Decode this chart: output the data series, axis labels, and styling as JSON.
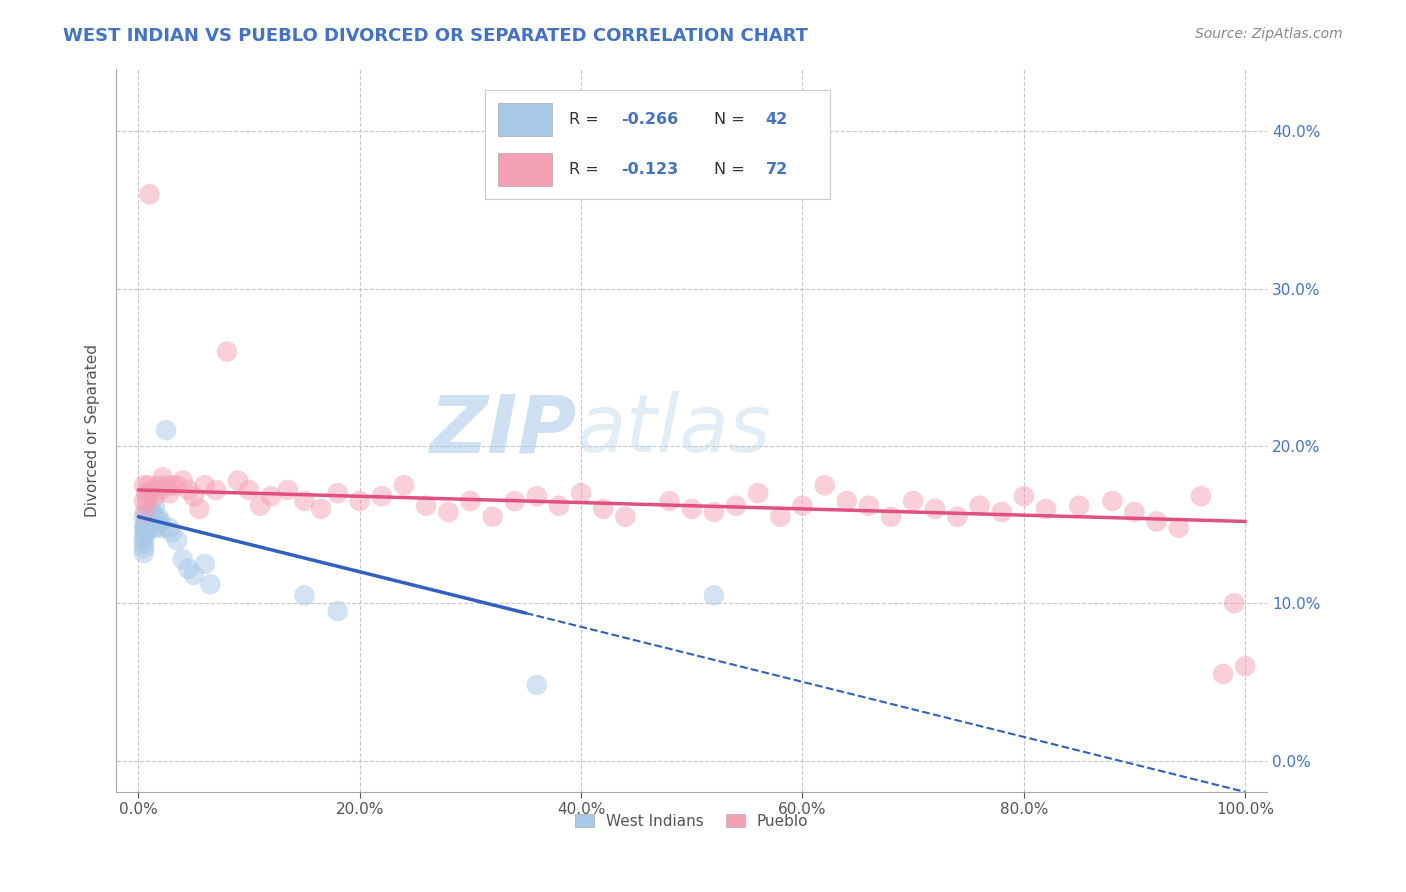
{
  "title": "WEST INDIAN VS PUEBLO DIVORCED OR SEPARATED CORRELATION CHART",
  "source_text": "Source: ZipAtlas.com",
  "ylabel": "Divorced or Separated",
  "xlim": [
    -0.02,
    1.02
  ],
  "ylim": [
    -0.02,
    0.44
  ],
  "xticks": [
    0.0,
    0.2,
    0.4,
    0.6,
    0.8,
    1.0
  ],
  "yticks": [
    0.0,
    0.1,
    0.2,
    0.3,
    0.4
  ],
  "color_blue": "#a8c8e8",
  "color_pink": "#f4a0b5",
  "color_blue_line": "#3060c0",
  "color_pink_line": "#e05080",
  "background_color": "#ffffff",
  "grid_color": "#c8c8c8",
  "title_color": "#4472c4",
  "axis_label_color": "#4472c4",
  "watermark_zip_color": "#b8d4f0",
  "watermark_atlas_color": "#c8dce8",
  "west_indians_x": [
    0.005,
    0.005,
    0.005,
    0.005,
    0.005,
    0.005,
    0.005,
    0.006,
    0.006,
    0.006,
    0.007,
    0.007,
    0.007,
    0.008,
    0.008,
    0.009,
    0.009,
    0.01,
    0.01,
    0.01,
    0.012,
    0.012,
    0.013,
    0.015,
    0.015,
    0.016,
    0.018,
    0.02,
    0.022,
    0.025,
    0.028,
    0.03,
    0.035,
    0.04,
    0.045,
    0.05,
    0.06,
    0.065,
    0.15,
    0.18,
    0.36,
    0.52
  ],
  "west_indians_y": [
    0.155,
    0.148,
    0.143,
    0.14,
    0.138,
    0.135,
    0.132,
    0.15,
    0.148,
    0.145,
    0.152,
    0.148,
    0.145,
    0.155,
    0.15,
    0.152,
    0.148,
    0.16,
    0.155,
    0.15,
    0.158,
    0.152,
    0.148,
    0.162,
    0.155,
    0.148,
    0.155,
    0.152,
    0.148,
    0.21,
    0.148,
    0.145,
    0.14,
    0.128,
    0.122,
    0.118,
    0.125,
    0.112,
    0.105,
    0.095,
    0.048,
    0.105
  ],
  "pueblo_x": [
    0.005,
    0.005,
    0.006,
    0.007,
    0.008,
    0.009,
    0.01,
    0.01,
    0.012,
    0.015,
    0.018,
    0.02,
    0.022,
    0.025,
    0.028,
    0.03,
    0.035,
    0.04,
    0.045,
    0.05,
    0.055,
    0.06,
    0.07,
    0.08,
    0.09,
    0.1,
    0.11,
    0.12,
    0.135,
    0.15,
    0.165,
    0.18,
    0.2,
    0.22,
    0.24,
    0.26,
    0.28,
    0.3,
    0.32,
    0.34,
    0.36,
    0.38,
    0.4,
    0.42,
    0.44,
    0.48,
    0.5,
    0.52,
    0.54,
    0.56,
    0.58,
    0.6,
    0.62,
    0.64,
    0.66,
    0.68,
    0.7,
    0.72,
    0.74,
    0.76,
    0.78,
    0.8,
    0.82,
    0.85,
    0.88,
    0.9,
    0.92,
    0.94,
    0.96,
    0.98,
    0.99,
    1.0
  ],
  "pueblo_y": [
    0.175,
    0.165,
    0.158,
    0.17,
    0.165,
    0.175,
    0.17,
    0.36,
    0.172,
    0.168,
    0.175,
    0.172,
    0.18,
    0.175,
    0.17,
    0.175,
    0.175,
    0.178,
    0.172,
    0.168,
    0.16,
    0.175,
    0.172,
    0.26,
    0.178,
    0.172,
    0.162,
    0.168,
    0.172,
    0.165,
    0.16,
    0.17,
    0.165,
    0.168,
    0.175,
    0.162,
    0.158,
    0.165,
    0.155,
    0.165,
    0.168,
    0.162,
    0.17,
    0.16,
    0.155,
    0.165,
    0.16,
    0.158,
    0.162,
    0.17,
    0.155,
    0.162,
    0.175,
    0.165,
    0.162,
    0.155,
    0.165,
    0.16,
    0.155,
    0.162,
    0.158,
    0.168,
    0.16,
    0.162,
    0.165,
    0.158,
    0.152,
    0.148,
    0.168,
    0.055,
    0.1,
    0.06
  ],
  "blue_trend_start_x": 0.0,
  "blue_trend_end_solid_x": 0.35,
  "blue_trend_end_dash_x": 1.0,
  "blue_trend_start_y": 0.155,
  "blue_trend_end_y": -0.02,
  "pink_trend_start_x": 0.0,
  "pink_trend_end_x": 1.0,
  "pink_trend_start_y": 0.172,
  "pink_trend_end_y": 0.152
}
